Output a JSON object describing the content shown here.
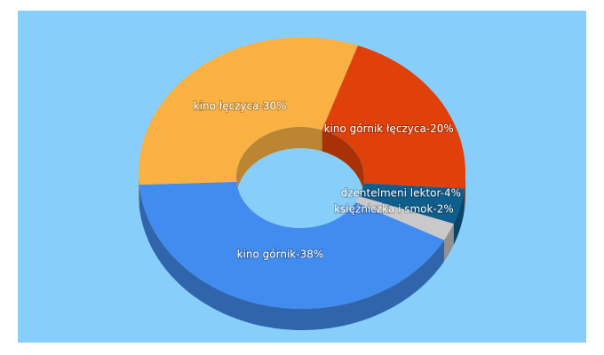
{
  "chart_data": {
    "type": "donut3d",
    "categories": [
      "kino górnik łęczyca-20%",
      "dzentelmeni lektor-4%",
      "księżniczka i smok-2%",
      "kino górnik-38%",
      "kino łęczyca-30%"
    ],
    "values": [
      20,
      4,
      2,
      38,
      30
    ],
    "colors": [
      "#e0410b",
      "#0e5e8e",
      "#c9c9c9",
      "#438cef",
      "#f9b143"
    ]
  }
}
